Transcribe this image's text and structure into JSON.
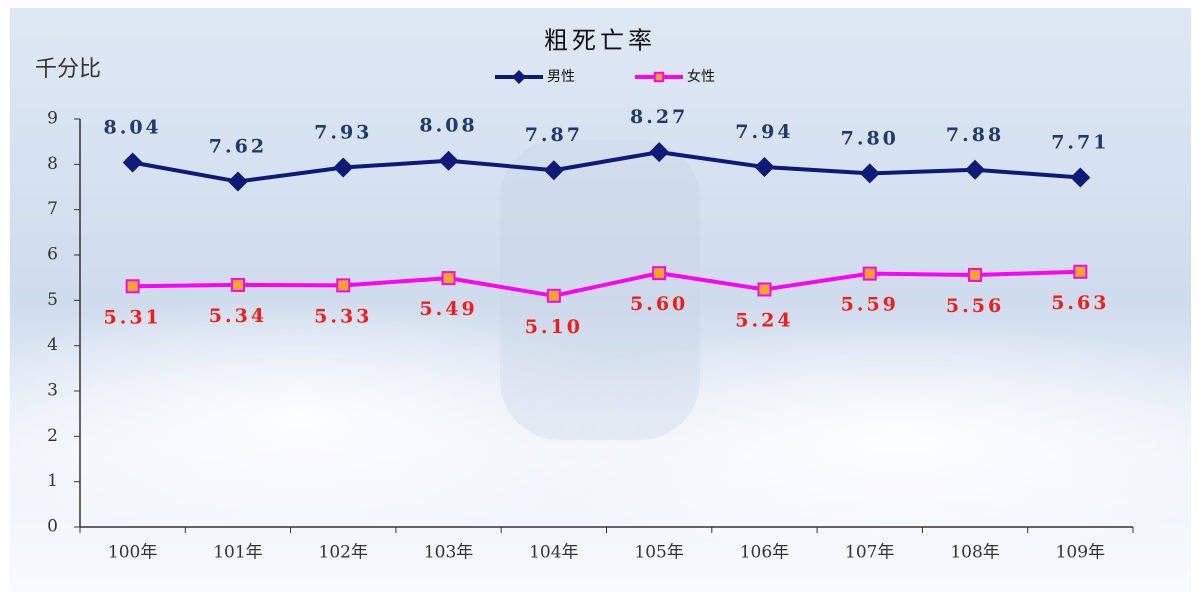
{
  "chart_data": {
    "type": "line",
    "title": "粗死亡率",
    "y_label": "千分比",
    "categories": [
      "100年",
      "101年",
      "102年",
      "103年",
      "104年",
      "105年",
      "106年",
      "107年",
      "108年",
      "109年"
    ],
    "series": [
      {
        "name": "男性",
        "color": "#0d1a7a",
        "marker": "diamond",
        "label_color": "#1f3a6e",
        "values": [
          8.04,
          7.62,
          7.93,
          8.08,
          7.87,
          8.27,
          7.94,
          7.8,
          7.88,
          7.71
        ],
        "value_labels": [
          "8.04",
          "7.62",
          "7.93",
          "8.08",
          "7.87",
          "8.27",
          "7.94",
          "7.80",
          "7.88",
          "7.71"
        ]
      },
      {
        "name": "女性",
        "color": "#ff00ff",
        "marker": "square",
        "label_color": "#ff1a1a",
        "values": [
          5.31,
          5.34,
          5.33,
          5.49,
          5.1,
          5.6,
          5.24,
          5.59,
          5.56,
          5.63
        ],
        "value_labels": [
          "5.31",
          "5.34",
          "5.33",
          "5.49",
          "5.10",
          "5.60",
          "5.24",
          "5.59",
          "5.56",
          "5.63"
        ]
      }
    ],
    "ylim": [
      0,
      9
    ],
    "yticks": [
      0,
      1,
      2,
      3,
      4,
      5,
      6,
      7,
      8,
      9
    ],
    "grid": false,
    "legend": "top"
  }
}
